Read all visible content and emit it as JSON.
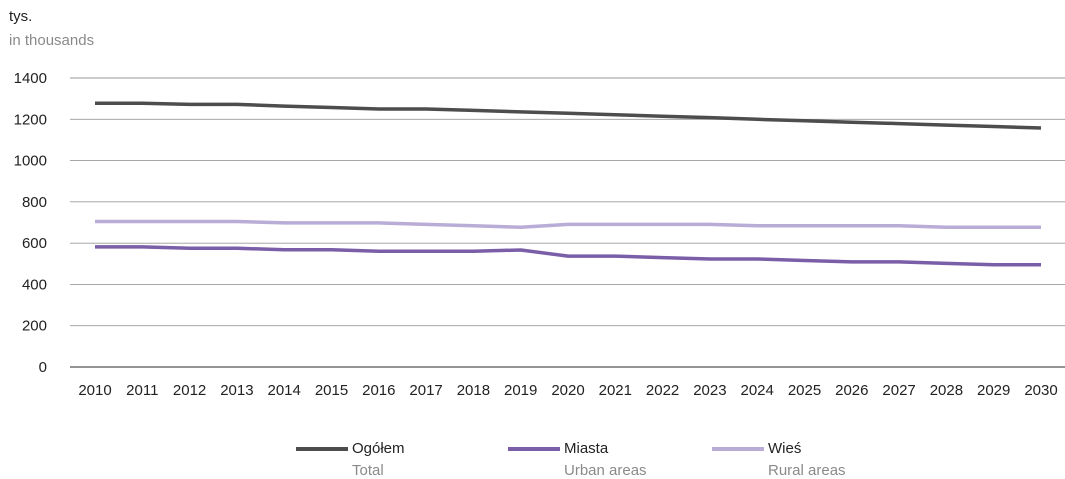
{
  "chart_data": {
    "type": "line",
    "unit_label": "tys.",
    "unit_label_en": "in thousands",
    "ylim": [
      0,
      1400
    ],
    "yticks": [
      0,
      200,
      400,
      600,
      800,
      1000,
      1200,
      1400
    ],
    "grid": true,
    "legend_placement": "bottom",
    "x": [
      "2010",
      "2011",
      "2012",
      "2013",
      "2014",
      "2015",
      "2016",
      "2017",
      "2018",
      "2019",
      "2020",
      "2021",
      "2022",
      "2023",
      "2024",
      "2025",
      "2026",
      "2027",
      "2028",
      "2029",
      "2030"
    ],
    "series": [
      {
        "name": "Ogółem",
        "name_en": "Total",
        "color": "#4d4d4d",
        "values": [
          1278,
          1278,
          1272,
          1272,
          1264,
          1257,
          1250,
          1250,
          1243,
          1236,
          1229,
          1222,
          1215,
          1208,
          1200,
          1193,
          1186,
          1179,
          1172,
          1165,
          1158
        ]
      },
      {
        "name": "Miasta",
        "name_en": "Urban areas",
        "color": "#7b5ea8",
        "values": [
          582,
          582,
          575,
          575,
          568,
          568,
          561,
          561,
          561,
          567,
          537,
          537,
          530,
          523,
          523,
          516,
          509,
          509,
          502,
          495,
          495
        ]
      },
      {
        "name": "Wieś",
        "name_en": "Rural areas",
        "color": "#b9acd6",
        "values": [
          705,
          705,
          705,
          705,
          698,
          698,
          698,
          691,
          684,
          677,
          691,
          691,
          691,
          691,
          684,
          684,
          684,
          684,
          677,
          677,
          677
        ]
      }
    ]
  }
}
